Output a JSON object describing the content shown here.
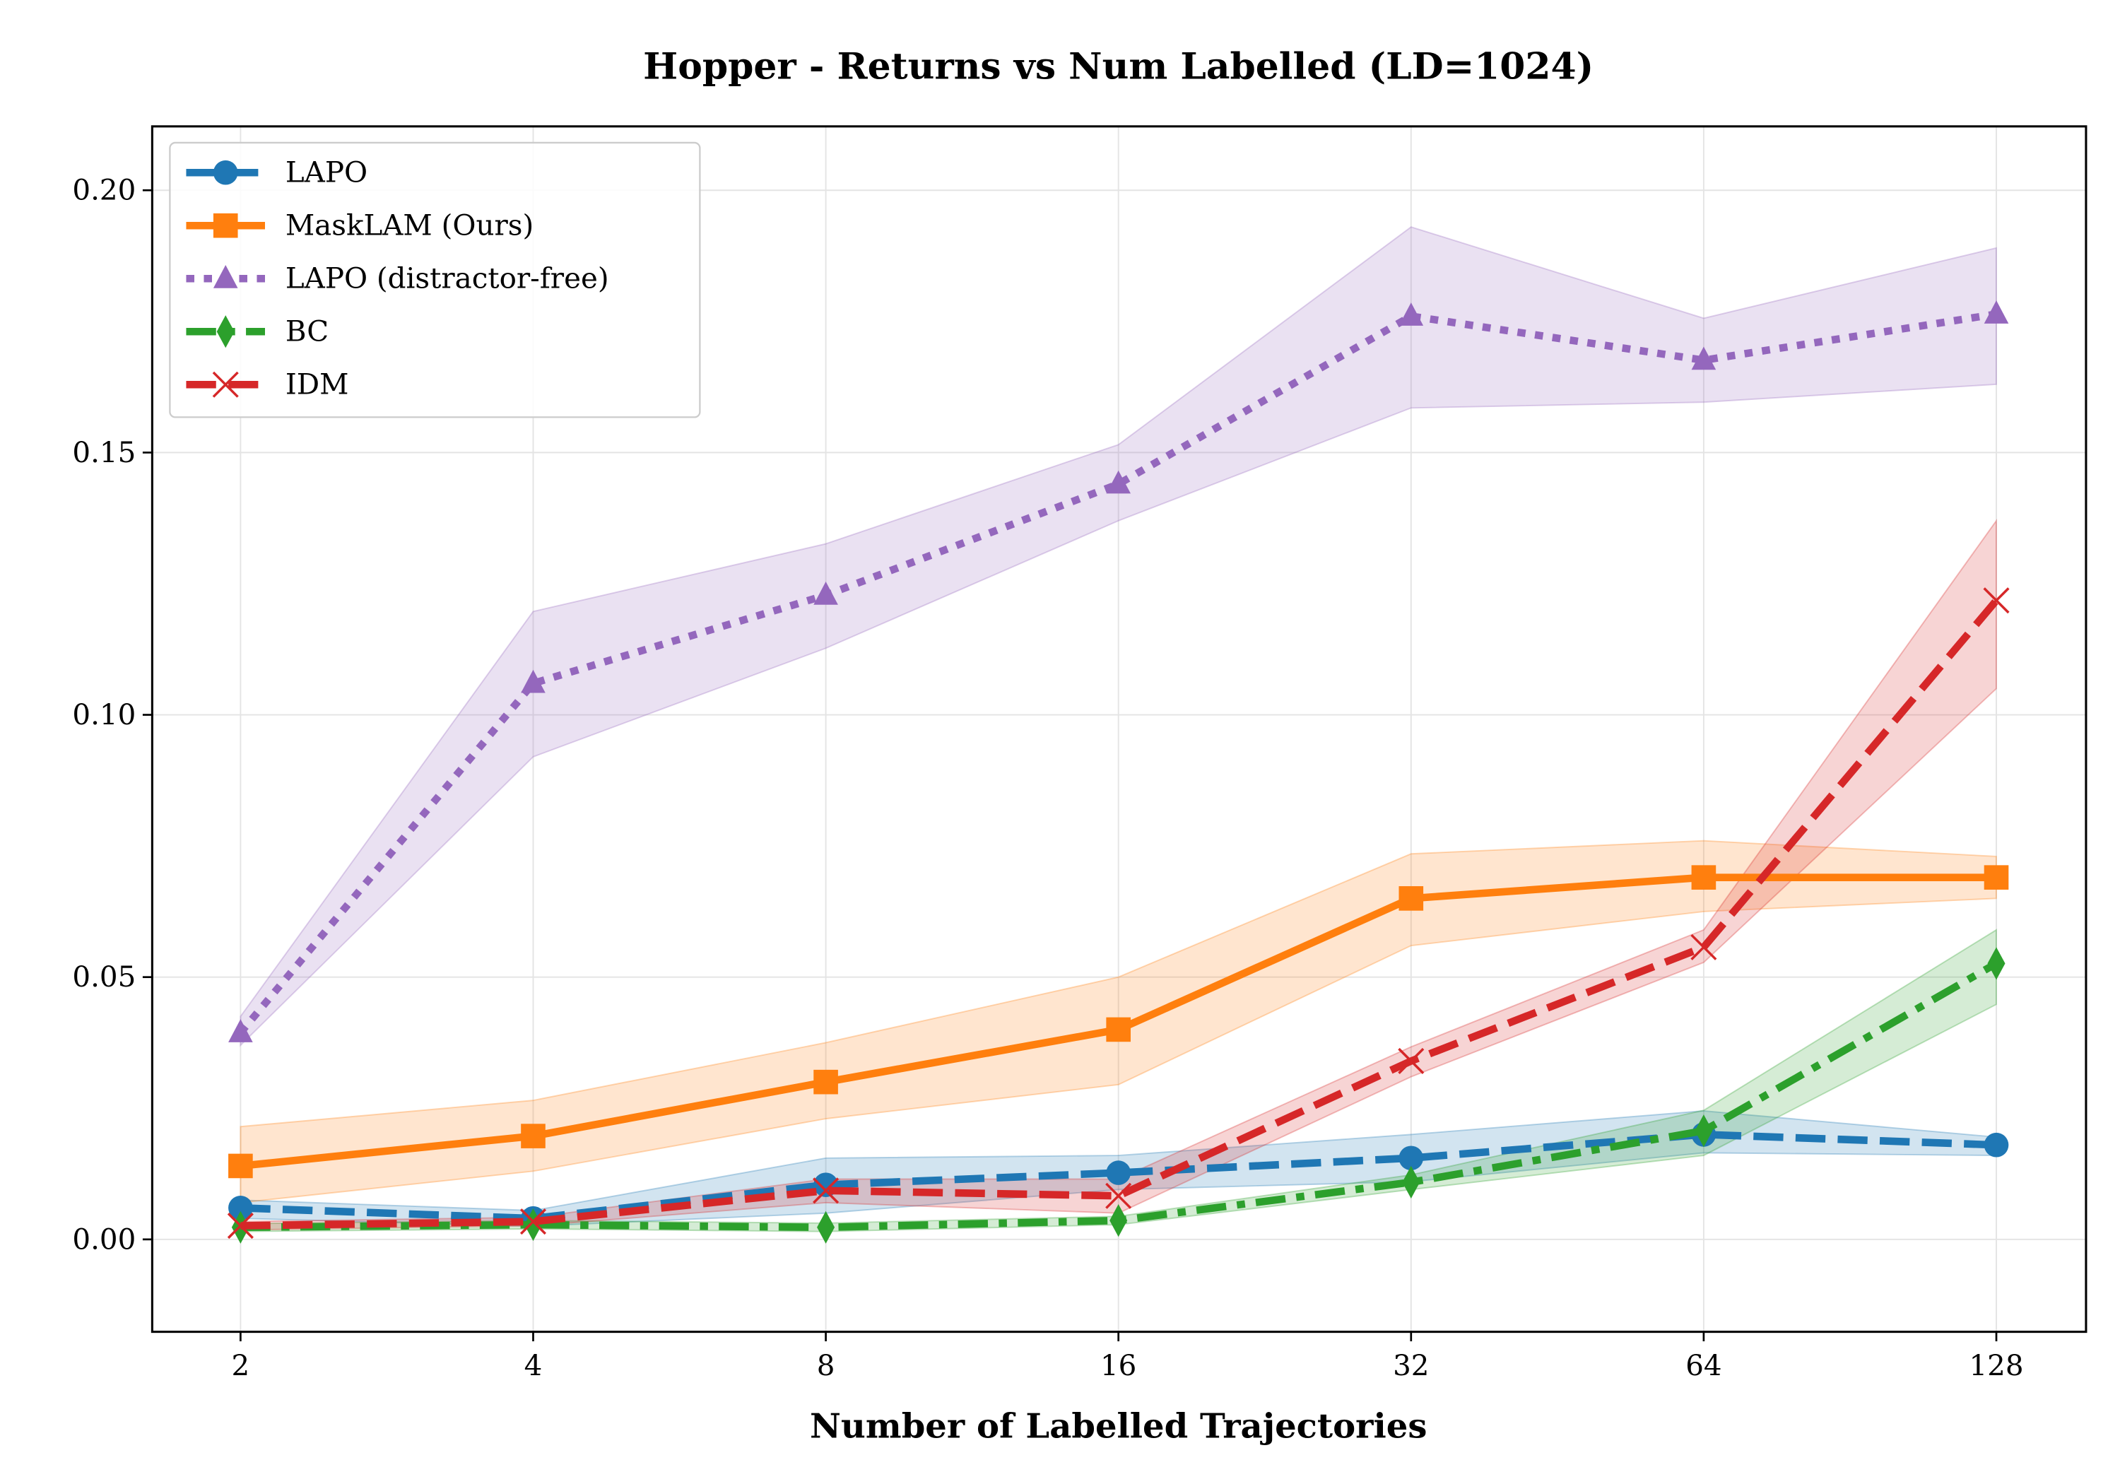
{
  "chart_data": {
    "type": "line",
    "title": "Hopper - Returns vs Num Labelled (LD=1024)",
    "xlabel": "Number of Labelled Trajectories",
    "ylabel": "",
    "x_scale": "log2",
    "x": [
      2,
      4,
      8,
      16,
      32,
      64,
      128
    ],
    "x_tick_labels": [
      "2",
      "4",
      "8",
      "16",
      "32",
      "64",
      "128"
    ],
    "y_ticks": [
      0.0,
      0.05,
      0.1,
      0.15,
      0.2
    ],
    "y_tick_labels": [
      "0.00",
      "0.05",
      "0.10",
      "0.15",
      "0.20"
    ],
    "ylim": [
      -0.0175,
      0.212
    ],
    "grid": true,
    "legend_position": "top-left",
    "series": [
      {
        "name": "LAPO",
        "color": "#1f77b4",
        "marker": "circle",
        "linestyle": "dashed",
        "values": [
          0.006,
          0.004,
          0.0104,
          0.0127,
          0.0155,
          0.02,
          0.018
        ],
        "lower": [
          0.004,
          0.0025,
          0.005,
          0.0095,
          0.011,
          0.0165,
          0.016
        ],
        "upper": [
          0.0075,
          0.0055,
          0.0155,
          0.016,
          0.02,
          0.0245,
          0.0195
        ]
      },
      {
        "name": "MaskLAM (Ours)",
        "color": "#ff7f0e",
        "marker": "square",
        "linestyle": "solid",
        "values": [
          0.014,
          0.0197,
          0.03,
          0.04,
          0.065,
          0.069,
          0.069
        ],
        "lower": [
          0.007,
          0.013,
          0.023,
          0.0295,
          0.056,
          0.0625,
          0.065
        ],
        "upper": [
          0.0215,
          0.0265,
          0.0375,
          0.05,
          0.0735,
          0.076,
          0.073
        ]
      },
      {
        "name": "LAPO (distractor-free)",
        "color": "#9467bd",
        "marker": "triangle",
        "linestyle": "dotted",
        "values": [
          0.0394,
          0.106,
          0.1228,
          0.144,
          0.176,
          0.1676,
          0.1764
        ],
        "lower": [
          0.037,
          0.092,
          0.1127,
          0.137,
          0.1585,
          0.1596,
          0.163
        ],
        "upper": [
          0.0425,
          0.1197,
          0.1326,
          0.1515,
          0.193,
          0.1756,
          0.189
        ]
      },
      {
        "name": "BC",
        "color": "#2ca02c",
        "marker": "thin_diamond",
        "linestyle": "dashdot",
        "values": [
          0.0023,
          0.0028,
          0.0023,
          0.0036,
          0.0109,
          0.0207,
          0.0526
        ],
        "lower": [
          0.0015,
          0.002,
          0.0015,
          0.0028,
          0.0095,
          0.016,
          0.0448
        ],
        "upper": [
          0.003,
          0.0036,
          0.0031,
          0.0044,
          0.0123,
          0.0246,
          0.059
        ]
      },
      {
        "name": "IDM",
        "color": "#d62728",
        "marker": "x",
        "linestyle": "dashed",
        "values": [
          0.0026,
          0.0034,
          0.0093,
          0.0083,
          0.034,
          0.0557,
          0.1218
        ],
        "lower": [
          0.0018,
          0.0026,
          0.007,
          0.005,
          0.031,
          0.0528,
          0.105
        ],
        "upper": [
          0.0034,
          0.0042,
          0.0115,
          0.0115,
          0.0367,
          0.059,
          0.137
        ]
      }
    ]
  }
}
